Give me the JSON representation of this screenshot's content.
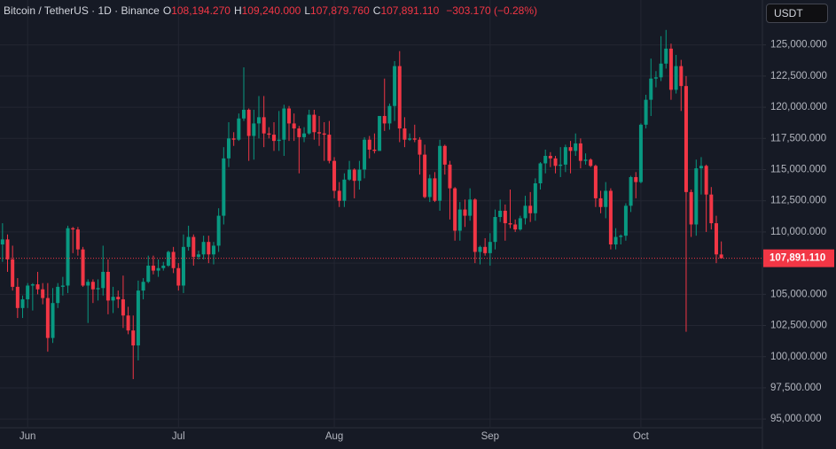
{
  "header": {
    "symbol": "Bitcoin / TetherUS · 1D · Binance",
    "ohlc": [
      {
        "key": "O",
        "value": "108,194.270"
      },
      {
        "key": "H",
        "value": "109,240.000"
      },
      {
        "key": "L",
        "value": "107,879.760"
      },
      {
        "key": "C",
        "value": "107,891.110"
      }
    ],
    "change": "−303.170 (−0.28%)"
  },
  "currency": "USDT",
  "chart_data": {
    "type": "candlestick",
    "up_color": "#089981",
    "down_color": "#f23645",
    "grid": true,
    "ylim": [
      94300,
      128600
    ],
    "yticks": [
      {
        "value": 95000,
        "label": "95,000.000"
      },
      {
        "value": 97500,
        "label": "97,500.000"
      },
      {
        "value": 100000,
        "label": "100,000.000"
      },
      {
        "value": 102500,
        "label": "102,500.000"
      },
      {
        "value": 105000,
        "label": "105,000.000"
      },
      {
        "value": 107500,
        "label": "107,500.000"
      },
      {
        "value": 110000,
        "label": "110,000.000"
      },
      {
        "value": 112500,
        "label": "112,500.000"
      },
      {
        "value": 115000,
        "label": "115,000.000"
      },
      {
        "value": 117500,
        "label": "117,500.000"
      },
      {
        "value": 120000,
        "label": "120,000.000"
      },
      {
        "value": 122500,
        "label": "122,500.000"
      },
      {
        "value": 125000,
        "label": "125,000.000"
      }
    ],
    "last_price": {
      "value": 107891.11,
      "label": "107,891.110"
    },
    "categories": [
      null,
      null,
      null,
      null,
      null,
      "Jun",
      null,
      null,
      null,
      null,
      null,
      null,
      null,
      null,
      null,
      null,
      null,
      null,
      null,
      null,
      null,
      null,
      null,
      null,
      null,
      null,
      null,
      null,
      null,
      null,
      null,
      null,
      null,
      null,
      null,
      "Jul",
      null,
      null,
      null,
      null,
      null,
      null,
      null,
      null,
      null,
      null,
      null,
      null,
      null,
      null,
      null,
      null,
      null,
      null,
      null,
      null,
      null,
      null,
      null,
      null,
      null,
      null,
      null,
      null,
      null,
      null,
      "Aug",
      null,
      null,
      null,
      null,
      null,
      null,
      null,
      null,
      null,
      null,
      null,
      null,
      null,
      null,
      null,
      null,
      null,
      null,
      null,
      null,
      null,
      null,
      null,
      null,
      null,
      null,
      null,
      null,
      null,
      null,
      "Sep",
      null,
      null,
      null,
      null,
      null,
      null,
      null,
      null,
      null,
      null,
      null,
      null,
      null,
      null,
      null,
      null,
      null,
      null,
      null,
      null,
      null,
      null,
      null,
      null,
      null,
      null,
      null,
      null,
      null,
      "Oct",
      null,
      null,
      null,
      null,
      null,
      null,
      null,
      null,
      null,
      null,
      null,
      null,
      null,
      null,
      null,
      null
    ],
    "open": [
      109000,
      109400,
      107800,
      105600,
      103900,
      104600,
      105700,
      105800,
      105400,
      104700,
      101500,
      104300,
      105600,
      105700,
      110300,
      110200,
      108600,
      105700,
      106000,
      105400,
      105500,
      106800,
      104500,
      104800,
      104600,
      103300,
      102100,
      100900,
      105300,
      106000,
      107300,
      106900,
      107100,
      107300,
      108400,
      107100,
      105700,
      108800,
      109600,
      108000,
      108200,
      109200,
      108200,
      108900,
      111300,
      115900,
      117500,
      117400,
      119100,
      119800,
      117700,
      118700,
      119200,
      117900,
      117800,
      117300,
      117400,
      119900,
      118700,
      118300,
      117600,
      117900,
      119400,
      118000,
      117900,
      117800,
      115700,
      113300,
      112500,
      114200,
      115000,
      114100,
      115000,
      117400,
      116600,
      116500,
      119300,
      118700,
      120100,
      123300,
      118300,
      117400,
      117500,
      117400,
      116200,
      112800,
      114300,
      112500,
      116900,
      115400,
      113500,
      110100,
      111800,
      111300,
      112600,
      108400,
      108800,
      108300,
      109200,
      111200,
      111700,
      110700,
      110600,
      110200,
      111100,
      112100,
      111500,
      113900,
      115500,
      116100,
      115900,
      115300,
      115400,
      116800,
      116500,
      117100,
      115700,
      115800,
      115300,
      112700,
      112000,
      113300,
      109000,
      109600,
      109700,
      112100,
      114400,
      114000,
      118600,
      120600,
      122300,
      122400,
      123500,
      124700,
      121400,
      123300,
      121700,
      113200,
      110600,
      115100,
      115300,
      113000,
      110700,
      108194.27
    ],
    "high": [
      110700,
      109800,
      108900,
      106300,
      104900,
      105900,
      105900,
      106800,
      105900,
      105900,
      105500,
      105900,
      106400,
      110500,
      110400,
      110400,
      108800,
      106200,
      106200,
      106200,
      108900,
      107800,
      105600,
      105300,
      106500,
      104000,
      103300,
      106100,
      106300,
      108100,
      108100,
      107800,
      107600,
      108500,
      108800,
      107500,
      109800,
      110500,
      109800,
      108500,
      109700,
      109700,
      109200,
      111900,
      116800,
      118800,
      118000,
      119500,
      123200,
      119900,
      119800,
      120900,
      120900,
      118400,
      118800,
      119700,
      120200,
      120100,
      119500,
      118500,
      118400,
      119800,
      119800,
      119300,
      118800,
      118900,
      116000,
      114000,
      114700,
      115700,
      115100,
      115700,
      117600,
      117700,
      117900,
      119300,
      122300,
      120300,
      123700,
      124500,
      119200,
      117900,
      118600,
      117600,
      117000,
      114600,
      114800,
      117400,
      117000,
      115700,
      113600,
      112400,
      112600,
      113500,
      112700,
      108900,
      109500,
      109900,
      111800,
      112600,
      112200,
      113400,
      111000,
      111300,
      112900,
      113200,
      114300,
      115600,
      116600,
      116400,
      116100,
      116800,
      117000,
      117300,
      117900,
      117500,
      116300,
      115900,
      115400,
      113300,
      114000,
      113500,
      110300,
      109800,
      112300,
      114500,
      114800,
      118700,
      121000,
      123900,
      122900,
      125700,
      126200,
      125100,
      124200,
      123800,
      122500,
      113400,
      115800,
      116000,
      115400,
      113600,
      111300,
      109240
    ],
    "low": [
      107600,
      106800,
      105300,
      103100,
      103100,
      103900,
      103700,
      105000,
      104200,
      100400,
      101100,
      103900,
      104900,
      105100,
      108300,
      108100,
      105600,
      102700,
      104300,
      104500,
      104900,
      103400,
      103500,
      103900,
      102300,
      101800,
      98200,
      99700,
      104600,
      105900,
      106600,
      106400,
      106900,
      107200,
      106700,
      105300,
      105100,
      108500,
      107300,
      107800,
      107800,
      107500,
      107400,
      108400,
      110600,
      115200,
      116900,
      117300,
      118900,
      115700,
      115800,
      117500,
      116800,
      117500,
      116500,
      116500,
      116100,
      117300,
      117300,
      114700,
      117200,
      117800,
      117400,
      116900,
      115700,
      115500,
      112700,
      112000,
      112000,
      114100,
      112700,
      113400,
      114300,
      115900,
      116300,
      116500,
      118100,
      118200,
      118900,
      117200,
      116800,
      117300,
      117200,
      114600,
      112700,
      112400,
      112400,
      111700,
      114600,
      111000,
      109300,
      109300,
      110400,
      110900,
      107500,
      107400,
      108100,
      107300,
      108600,
      110800,
      109300,
      110300,
      110000,
      110100,
      110600,
      110800,
      110900,
      113400,
      114700,
      115200,
      114700,
      114400,
      114800,
      114700,
      116100,
      115100,
      115400,
      115200,
      112000,
      111500,
      111100,
      108600,
      108600,
      109000,
      109300,
      111600,
      112700,
      113900,
      118300,
      119300,
      121600,
      122100,
      123100,
      120600,
      121100,
      119700,
      102000,
      109600,
      109700,
      113000,
      110000,
      110200,
      107500,
      107879.76
    ],
    "close": [
      109400,
      107800,
      105600,
      103900,
      104600,
      105700,
      105800,
      105400,
      104700,
      101500,
      104300,
      105600,
      105700,
      110300,
      110200,
      108600,
      105700,
      106000,
      105400,
      105500,
      106800,
      104500,
      104800,
      104600,
      103300,
      102100,
      100900,
      105300,
      106000,
      107300,
      106900,
      107100,
      107300,
      108400,
      107100,
      105700,
      108800,
      109600,
      108000,
      108200,
      109200,
      108200,
      108900,
      111300,
      115900,
      117500,
      117400,
      119100,
      119800,
      117700,
      118700,
      119200,
      117900,
      117800,
      117300,
      117400,
      119900,
      118700,
      118300,
      117600,
      117900,
      119400,
      118000,
      117900,
      117800,
      115700,
      113300,
      112500,
      114200,
      115000,
      114100,
      115000,
      117400,
      116600,
      116500,
      119300,
      118700,
      120100,
      123300,
      118300,
      117400,
      117500,
      117400,
      116200,
      112800,
      114300,
      112500,
      116900,
      115400,
      113500,
      110100,
      111800,
      111300,
      112600,
      108400,
      108800,
      108300,
      109200,
      111200,
      111700,
      110700,
      110600,
      110200,
      111100,
      112100,
      111500,
      113900,
      115500,
      116100,
      115900,
      115300,
      115400,
      116800,
      116500,
      117100,
      115700,
      115800,
      115300,
      112700,
      112000,
      113300,
      109000,
      109600,
      109700,
      112100,
      114400,
      114000,
      118600,
      120600,
      122300,
      122400,
      123500,
      124700,
      121400,
      123300,
      121700,
      113200,
      110600,
      115100,
      115300,
      113000,
      110700,
      108200,
      107891.11
    ]
  }
}
